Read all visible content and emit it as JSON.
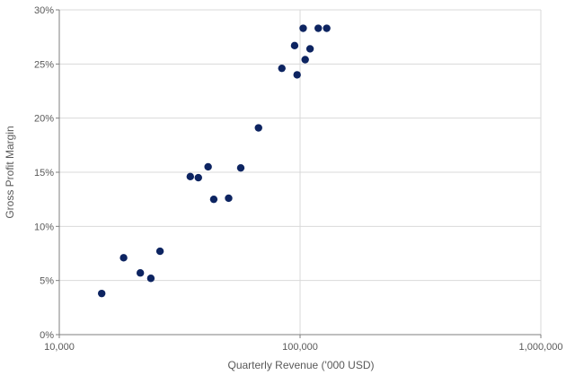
{
  "chart_data": {
    "type": "scatter",
    "xlabel": "Quarterly Revenue ('000 USD)",
    "ylabel": "Gross Profit Margin",
    "xscale": "log",
    "xlim": [
      10000,
      1000000
    ],
    "ylim": [
      0,
      0.3
    ],
    "xticks": [
      10000,
      100000,
      1000000
    ],
    "xtick_labels": [
      "10,000",
      "100,000",
      "1,000,000"
    ],
    "yticks": [
      0,
      0.05,
      0.1,
      0.15,
      0.2,
      0.25,
      0.3
    ],
    "ytick_labels": [
      "0%",
      "5%",
      "10%",
      "15%",
      "20%",
      "25%",
      "30%"
    ],
    "grid": true,
    "marker_color": "#0d2461",
    "points": [
      {
        "x": 15000,
        "y": 0.038
      },
      {
        "x": 18500,
        "y": 0.071
      },
      {
        "x": 21700,
        "y": 0.057
      },
      {
        "x": 24000,
        "y": 0.052
      },
      {
        "x": 26200,
        "y": 0.077
      },
      {
        "x": 35000,
        "y": 0.146
      },
      {
        "x": 37800,
        "y": 0.145
      },
      {
        "x": 41500,
        "y": 0.155
      },
      {
        "x": 43800,
        "y": 0.125
      },
      {
        "x": 50500,
        "y": 0.126
      },
      {
        "x": 56700,
        "y": 0.154
      },
      {
        "x": 67200,
        "y": 0.191
      },
      {
        "x": 84000,
        "y": 0.246
      },
      {
        "x": 94900,
        "y": 0.267
      },
      {
        "x": 97200,
        "y": 0.24
      },
      {
        "x": 103000,
        "y": 0.283
      },
      {
        "x": 105000,
        "y": 0.254
      },
      {
        "x": 110000,
        "y": 0.264
      },
      {
        "x": 119000,
        "y": 0.283
      },
      {
        "x": 129000,
        "y": 0.283
      }
    ]
  }
}
